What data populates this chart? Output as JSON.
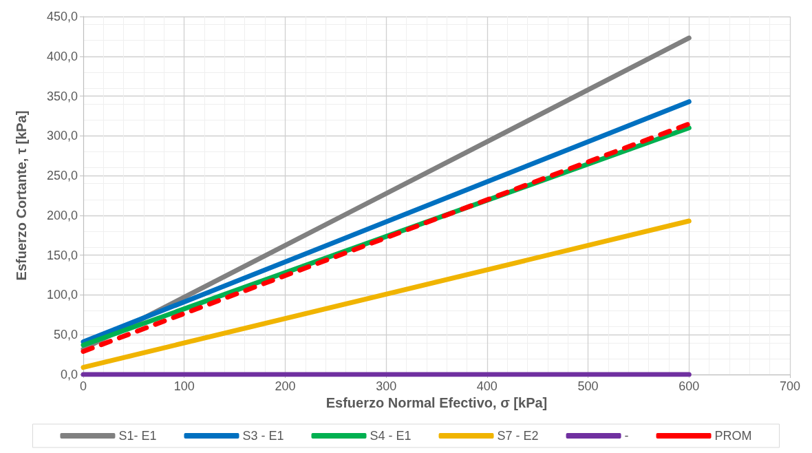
{
  "chart_data": {
    "type": "line",
    "xlabel": "Esfuerzo Normal Efectivo, σ [kPa]",
    "ylabel": "Esfuerzo Cortante, τ [kPa]",
    "x": [
      0,
      600
    ],
    "series": [
      {
        "name": "S1- E1",
        "color": "#808080",
        "values": [
          32,
          423
        ]
      },
      {
        "name": "S3 - E1",
        "color": "#0070c0",
        "values": [
          41,
          343
        ]
      },
      {
        "name": "S4 - E1",
        "color": "#00b050",
        "values": [
          37,
          310
        ]
      },
      {
        "name": "S7 - E2",
        "color": "#f0b400",
        "values": [
          9,
          193
        ]
      },
      {
        "name": "-",
        "color": "#7030a0",
        "values": [
          0,
          0
        ]
      },
      {
        "name": "PROM",
        "color": "#ff0000",
        "values": [
          29,
          315
        ],
        "line_style": "dashed"
      }
    ],
    "xlim": [
      0,
      700
    ],
    "xticks": [
      0,
      100,
      200,
      300,
      400,
      500,
      600,
      700
    ],
    "ylim": [
      0,
      450
    ],
    "yticks": [
      {
        "value": 0,
        "label": "0,0"
      },
      {
        "value": 50,
        "label": "50,0"
      },
      {
        "value": 100,
        "label": "100,0"
      },
      {
        "value": 150,
        "label": "150,0"
      },
      {
        "value": 200,
        "label": "200,0"
      },
      {
        "value": 250,
        "label": "250,0"
      },
      {
        "value": 300,
        "label": "300,0"
      },
      {
        "value": 350,
        "label": "350,0"
      },
      {
        "value": 400,
        "label": "400,0"
      },
      {
        "value": 450,
        "label": "450,0"
      }
    ],
    "grid": true,
    "legend": "bottom",
    "marker": "none",
    "line_style": "solid"
  }
}
